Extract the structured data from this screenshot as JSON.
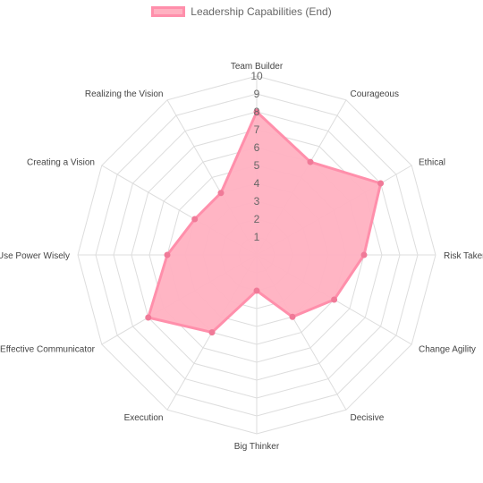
{
  "chart_data": {
    "type": "radar",
    "labels": [
      "Team Builder",
      "Courageous",
      "Ethical",
      "Risk Taker",
      "Change Agility",
      "Decisive",
      "Big Thinker",
      "Execution",
      "Effective Communicator",
      "Use Power Wisely",
      "Creating a Vision",
      "Realizing the Vision"
    ],
    "series": [
      {
        "name": "Leadership Capabilities (End)",
        "values": [
          8,
          6,
          8,
          6,
          5,
          4,
          2,
          5,
          7,
          5,
          4,
          4
        ]
      }
    ],
    "r_ticks": [
      1,
      2,
      3,
      4,
      5,
      6,
      7,
      8,
      9,
      10
    ],
    "r_range": [
      0,
      10
    ],
    "legend": "top",
    "grid": true,
    "colors": {
      "fill": "#ffb1c1",
      "stroke": "#ff8fab",
      "point": "#f07a98",
      "grid": "#dddddd",
      "label": "#666666"
    }
  }
}
